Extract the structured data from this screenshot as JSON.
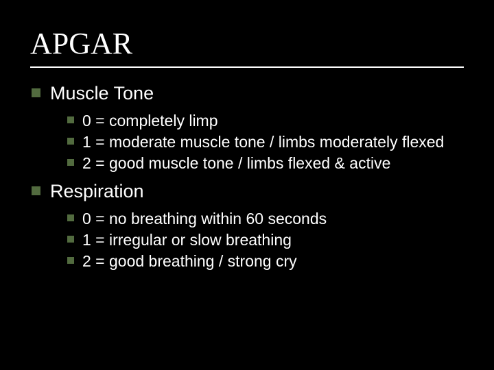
{
  "slide": {
    "title": "APGAR",
    "title_font": "Times New Roman",
    "title_fontsize": 44,
    "title_color": "#ffffff",
    "background_color": "#000000",
    "bullet_color": "#526b3f",
    "body_font": "Arial",
    "divider_color": "#ffffff",
    "sections": [
      {
        "heading": "Muscle Tone",
        "heading_fontsize": 27,
        "items": [
          {
            "text": "0 = completely limp"
          },
          {
            "text": "1 = moderate muscle tone / limbs moderately flexed"
          },
          {
            "text": "2 = good muscle tone / limbs flexed & active"
          }
        ],
        "item_fontsize": 23
      },
      {
        "heading": "Respiration",
        "heading_fontsize": 27,
        "items": [
          {
            "text": "0 = no breathing within 60 seconds"
          },
          {
            "text": "1 = irregular or slow breathing"
          },
          {
            "text": "2 = good breathing / strong cry"
          }
        ],
        "item_fontsize": 23
      }
    ]
  }
}
